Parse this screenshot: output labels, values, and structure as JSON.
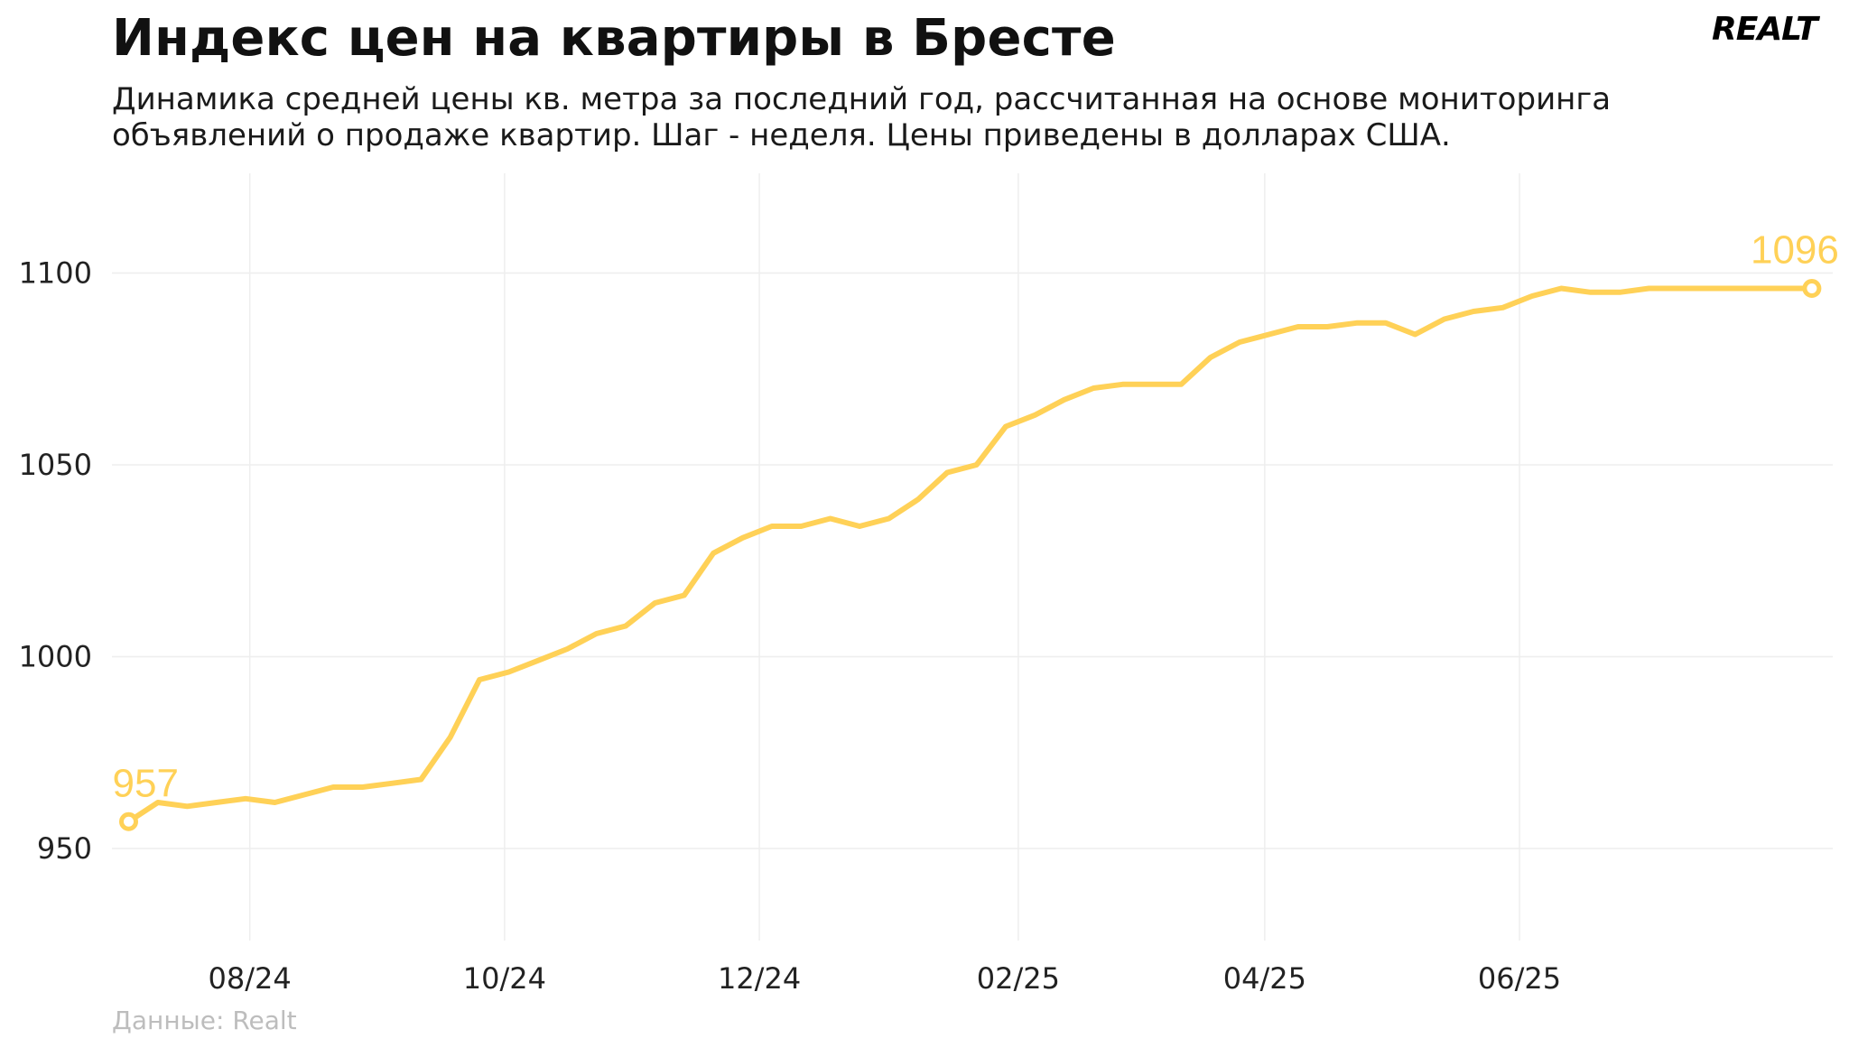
{
  "header": {
    "title": "Индекс цен на квартиры в Бресте",
    "subtitle_line1": "Динамика средней цены кв. метра за последний год, рассчитанная на основе мониторинга",
    "subtitle_line2": "объявлений о продаже квартир. Шаг - неделя. Цены приведены в долларах США.",
    "logo": "REALT"
  },
  "footer": {
    "source": "Данные: Realt"
  },
  "colors": {
    "line": "#FFD157",
    "grid": "#eeeeee"
  },
  "chart_data": {
    "type": "line",
    "title": "Индекс цен на квартиры в Бресте",
    "xlabel": "",
    "ylabel": "",
    "ylim": [
      926,
      1126
    ],
    "xlim": [
      "2024-06-29",
      "2025-08-15"
    ],
    "yticks": [
      950,
      1000,
      1050,
      1100
    ],
    "xticks": [
      {
        "date": "2024-08-01",
        "label": "08/24"
      },
      {
        "date": "2024-10-01",
        "label": "10/24"
      },
      {
        "date": "2024-12-01",
        "label": "12/24"
      },
      {
        "date": "2025-02-01",
        "label": "02/25"
      },
      {
        "date": "2025-04-01",
        "label": "04/25"
      },
      {
        "date": "2025-06-01",
        "label": "06/25"
      }
    ],
    "grid": true,
    "legend": "none",
    "annotations": [
      {
        "date": "2024-07-03",
        "value": 957,
        "label": "957"
      },
      {
        "date": "2025-08-10",
        "value": 1096,
        "label": "1096"
      }
    ],
    "series": [
      {
        "x": [
          "2024-07-03",
          "2024-07-10",
          "2024-07-17",
          "2024-07-24",
          "2024-07-31",
          "2024-08-07",
          "2024-08-14",
          "2024-08-21",
          "2024-08-28",
          "2024-09-04",
          "2024-09-11",
          "2024-09-18",
          "2024-09-25",
          "2024-10-02",
          "2024-10-09",
          "2024-10-16",
          "2024-10-23",
          "2024-10-30",
          "2024-11-06",
          "2024-11-13",
          "2024-11-20",
          "2024-11-27",
          "2024-12-04",
          "2024-12-11",
          "2024-12-18",
          "2024-12-25",
          "2025-01-01",
          "2025-01-08",
          "2025-01-15",
          "2025-01-22",
          "2025-01-29",
          "2025-02-05",
          "2025-02-12",
          "2025-02-19",
          "2025-02-26",
          "2025-03-05",
          "2025-03-12",
          "2025-03-19",
          "2025-03-26",
          "2025-04-02",
          "2025-04-09",
          "2025-04-16",
          "2025-04-23",
          "2025-04-30",
          "2025-05-07",
          "2025-05-14",
          "2025-05-21",
          "2025-05-28",
          "2025-06-04",
          "2025-06-11",
          "2025-06-18",
          "2025-06-25",
          "2025-07-02",
          "2025-07-09",
          "2025-07-16",
          "2025-07-23",
          "2025-07-30",
          "2025-08-06",
          "2025-08-10"
        ],
        "values": [
          957,
          962,
          961,
          962,
          963,
          962,
          964,
          966,
          966,
          967,
          968,
          979,
          994,
          996,
          999,
          1002,
          1006,
          1008,
          1014,
          1016,
          1027,
          1031,
          1034,
          1034,
          1036,
          1034,
          1036,
          1041,
          1048,
          1050,
          1060,
          1063,
          1067,
          1070,
          1071,
          1071,
          1071,
          1078,
          1082,
          1084,
          1086,
          1086,
          1087,
          1087,
          1084,
          1088,
          1090,
          1091,
          1094,
          1096,
          1095,
          1095,
          1096,
          1096,
          1096,
          1096,
          1096,
          1096,
          1096
        ]
      }
    ]
  }
}
